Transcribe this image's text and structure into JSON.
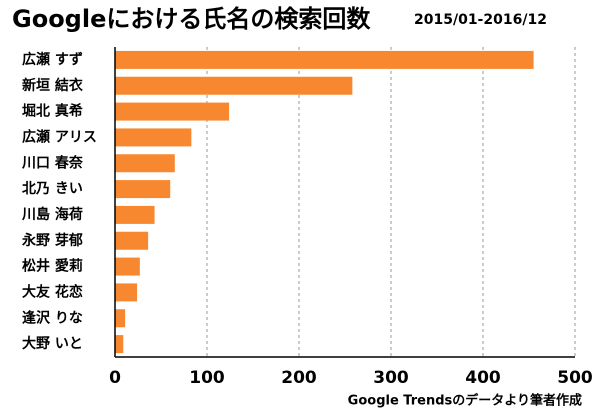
{
  "chart_data": {
    "type": "bar",
    "orientation": "horizontal",
    "title": "Googleにおける氏名の検索回数",
    "subtitle": "2015/01-2016/12",
    "source": "Google Trendsのデータより筆者作成",
    "categories": [
      "広瀬 すず",
      "新垣 結衣",
      "堀北 真希",
      "広瀬 アリス",
      "川口 春奈",
      "北乃 きい",
      "川島 海荷",
      "永野 芽郁",
      "松井 愛莉",
      "大友 花恋",
      "逢沢 りな",
      "大野 いと"
    ],
    "values": [
      455,
      258,
      124,
      83,
      65,
      60,
      43,
      36,
      27,
      24,
      11,
      9
    ],
    "color": "#f7882f",
    "xlim": [
      0,
      500
    ],
    "xticks": [
      0,
      100,
      200,
      300,
      400,
      500
    ],
    "grid": true
  }
}
